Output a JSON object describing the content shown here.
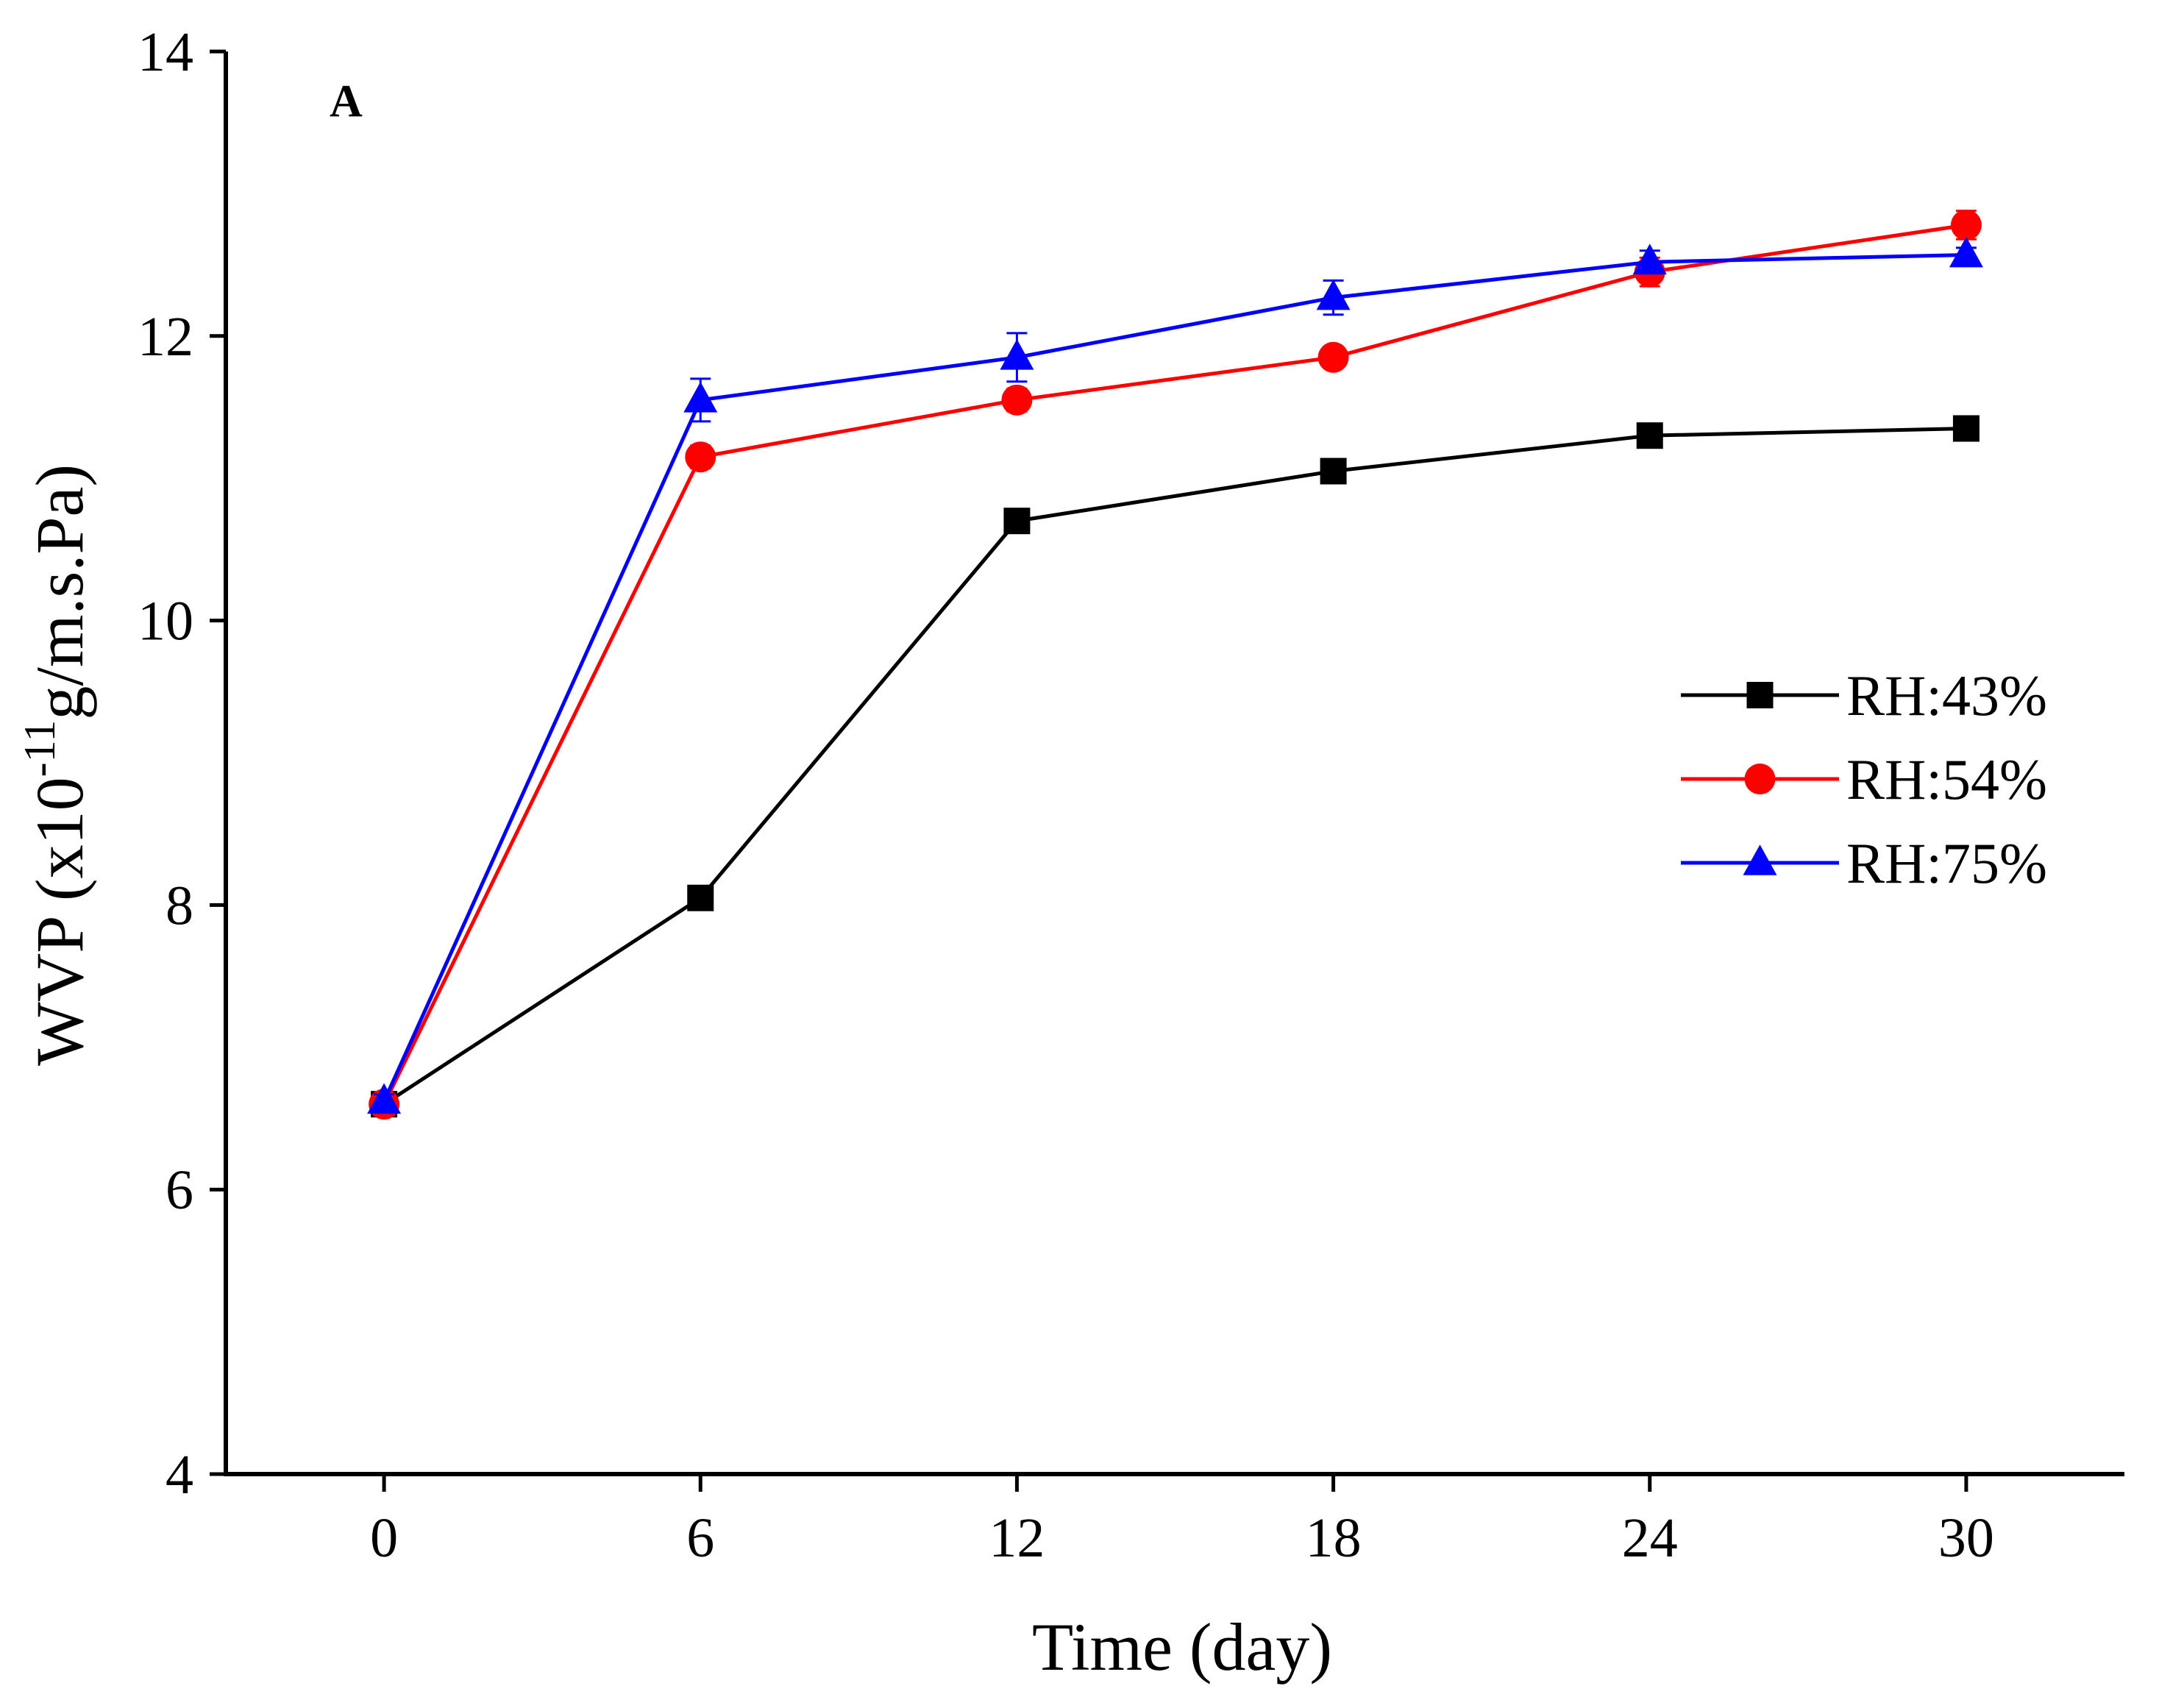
{
  "chart_data": {
    "type": "line",
    "panel_label": "A",
    "title": "",
    "xlabel": "Time (day)",
    "ylabel": {
      "prefix": "WVP (x10",
      "exponent": "-11",
      "suffix": "g/m.s.Pa)"
    },
    "x": [
      0,
      6,
      12,
      18,
      24,
      30
    ],
    "xticks": [
      "0",
      "6",
      "12",
      "18",
      "24",
      "30"
    ],
    "xlim": [
      -3,
      33
    ],
    "ylim": [
      4,
      14
    ],
    "yticks": [
      "4",
      "6",
      "8",
      "10",
      "12",
      "14"
    ],
    "grid": false,
    "legend_position": "right",
    "series": [
      {
        "name": "RH:43%",
        "color": "#000000",
        "marker": "square",
        "values": [
          6.6,
          8.05,
          10.7,
          11.05,
          11.3,
          11.35
        ],
        "errors": [
          0.05,
          0.08,
          0.08,
          0.05,
          0.05,
          0.05
        ]
      },
      {
        "name": "RH:54%",
        "color": "#ff0000",
        "marker": "circle",
        "values": [
          6.6,
          11.15,
          11.55,
          11.85,
          12.45,
          12.78
        ],
        "errors": [
          0.05,
          0.08,
          0.08,
          0.05,
          0.1,
          0.1
        ]
      },
      {
        "name": "RH:75%",
        "color": "#0000ff",
        "marker": "triangle",
        "values": [
          6.62,
          11.55,
          11.85,
          12.27,
          12.52,
          12.57
        ],
        "errors": [
          0.05,
          0.15,
          0.17,
          0.12,
          0.08,
          0.05
        ]
      }
    ]
  }
}
